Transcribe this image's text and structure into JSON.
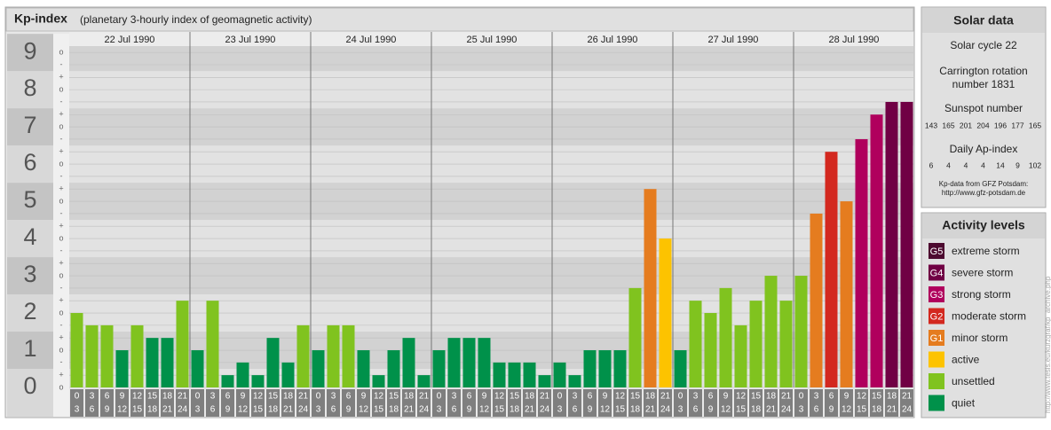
{
  "chart_data": {
    "type": "bar",
    "title": "Kp-index",
    "subtitle": "(planetary 3-hourly index of geomagnetic activity)",
    "days": [
      "22 Jul 1990",
      "23 Jul 1990",
      "24 Jul 1990",
      "25 Jul 1990",
      "26 Jul 1990",
      "27 Jul 1990",
      "28 Jul 1990"
    ],
    "hours": [
      [
        "0",
        "3"
      ],
      [
        "3",
        "6"
      ],
      [
        "6",
        "9"
      ],
      [
        "9",
        "12"
      ],
      [
        "12",
        "15"
      ],
      [
        "15",
        "18"
      ],
      [
        "18",
        "21"
      ],
      [
        "21",
        "24"
      ]
    ],
    "ylim": [
      0,
      9.17
    ],
    "yticks": [
      0,
      1,
      2,
      3,
      4,
      5,
      6,
      7,
      8,
      9
    ],
    "minor_ticks": [
      {
        "value": 0,
        "label": "o"
      },
      {
        "value": 0.33,
        "label": "+"
      },
      {
        "value": 0.67,
        "label": "-"
      },
      {
        "value": 1,
        "label": "o"
      },
      {
        "value": 1.33,
        "label": "+"
      },
      {
        "value": 1.67,
        "label": "-"
      },
      {
        "value": 2,
        "label": "o"
      },
      {
        "value": 2.33,
        "label": "+"
      },
      {
        "value": 2.67,
        "label": "-"
      },
      {
        "value": 3,
        "label": "o"
      },
      {
        "value": 3.33,
        "label": "+"
      },
      {
        "value": 3.67,
        "label": "-"
      },
      {
        "value": 4,
        "label": "o"
      },
      {
        "value": 4.33,
        "label": "+"
      },
      {
        "value": 4.67,
        "label": "-"
      },
      {
        "value": 5,
        "label": "o"
      },
      {
        "value": 5.33,
        "label": "+"
      },
      {
        "value": 5.67,
        "label": "-"
      },
      {
        "value": 6,
        "label": "o"
      },
      {
        "value": 6.33,
        "label": "+"
      },
      {
        "value": 6.67,
        "label": "-"
      },
      {
        "value": 7,
        "label": "o"
      },
      {
        "value": 7.33,
        "label": "+"
      },
      {
        "value": 7.67,
        "label": "-"
      },
      {
        "value": 8,
        "label": "o"
      },
      {
        "value": 8.33,
        "label": "+"
      },
      {
        "value": 8.67,
        "label": "-"
      },
      {
        "value": 9,
        "label": "o"
      }
    ],
    "grid": true,
    "series": [
      {
        "values": [
          2,
          1.67,
          1.67,
          1,
          1.67,
          1.33,
          1.33,
          2.33,
          1,
          2.33,
          0.33,
          0.67,
          0.33,
          1.33,
          0.67,
          1.67,
          1,
          1.67,
          1.67,
          1,
          0.33,
          1,
          1.33,
          0.33,
          1,
          1.33,
          1.33,
          1.33,
          0.67,
          0.67,
          0.67,
          0.33,
          0.67,
          0.33,
          1,
          1,
          1,
          2.67,
          5.33,
          4,
          1,
          2.33,
          2,
          2.67,
          1.67,
          2.33,
          3,
          2.33,
          3,
          4.67,
          6.33,
          5,
          6.67,
          7.33,
          7.67,
          7.67
        ],
        "colors": [
          "#80c31f",
          "#80c31f",
          "#80c31f",
          "#00914a",
          "#80c31f",
          "#00914a",
          "#00914a",
          "#80c31f",
          "#00914a",
          "#80c31f",
          "#00914a",
          "#00914a",
          "#00914a",
          "#00914a",
          "#00914a",
          "#80c31f",
          "#00914a",
          "#80c31f",
          "#80c31f",
          "#00914a",
          "#00914a",
          "#00914a",
          "#00914a",
          "#00914a",
          "#00914a",
          "#00914a",
          "#00914a",
          "#00914a",
          "#00914a",
          "#00914a",
          "#00914a",
          "#00914a",
          "#00914a",
          "#00914a",
          "#00914a",
          "#00914a",
          "#00914a",
          "#80c31f",
          "#e57c1f",
          "#fdc300",
          "#00914a",
          "#80c31f",
          "#80c31f",
          "#80c31f",
          "#80c31f",
          "#80c31f",
          "#80c31f",
          "#80c31f",
          "#80c31f",
          "#e57c1f",
          "#d3281f",
          "#e57c1f",
          "#b0005d",
          "#b0005d",
          "#700044",
          "#700044"
        ]
      }
    ],
    "solar": {
      "title": "Solar data",
      "cycle": "Solar cycle 22",
      "carrington": [
        "Carrington rotation",
        "number 1831"
      ],
      "sunspot_title": "Sunspot number",
      "sunspot": [
        143,
        165,
        201,
        204,
        196,
        177,
        165
      ],
      "ap_title": "Daily Ap-index",
      "ap": [
        6,
        4,
        4,
        4,
        14,
        9,
        102
      ],
      "source": [
        "Kp-data from GFZ Potsdam:",
        "http://www.gfz-potsdam.de"
      ]
    },
    "legend_title": "Activity levels",
    "legend": [
      {
        "code": "G5",
        "name": "extreme storm",
        "color": "#4d0a30"
      },
      {
        "code": "G4",
        "name": "severe storm",
        "color": "#700044"
      },
      {
        "code": "G3",
        "name": "strong storm",
        "color": "#b0005d"
      },
      {
        "code": "G2",
        "name": "moderate storm",
        "color": "#d3281f"
      },
      {
        "code": "G1",
        "name": "minor storm",
        "color": "#e57c1f"
      },
      {
        "name": "active",
        "color": "#fdc300"
      },
      {
        "name": "unsettled",
        "color": "#80c31f"
      },
      {
        "name": "quiet",
        "color": "#00914a"
      }
    ],
    "credit": "http://www.tesis.eu/kurzgraf/kp_archive.php"
  }
}
